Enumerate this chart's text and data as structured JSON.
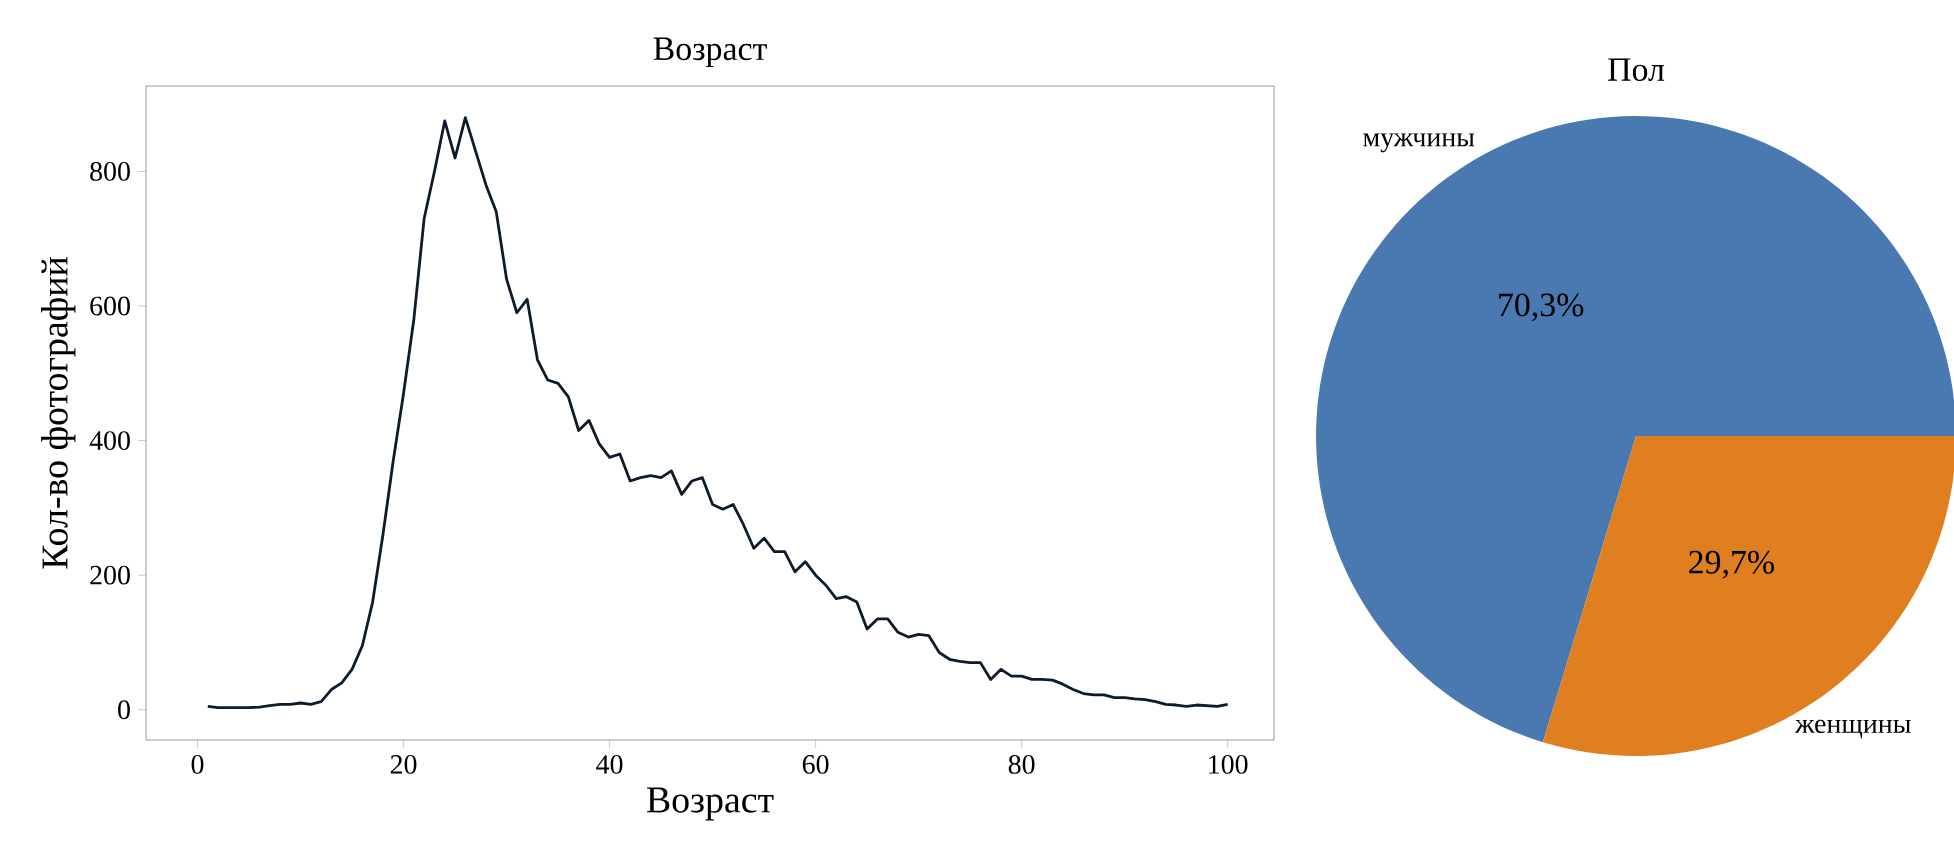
{
  "chart_data": [
    {
      "type": "line",
      "title": "Возраст",
      "xlabel": "Возраст",
      "ylabel": "Кол-во фотографий",
      "x": [
        1,
        2,
        3,
        4,
        5,
        6,
        7,
        8,
        9,
        10,
        11,
        12,
        13,
        14,
        15,
        16,
        17,
        18,
        19,
        20,
        21,
        22,
        23,
        24,
        25,
        26,
        27,
        28,
        29,
        30,
        31,
        32,
        33,
        34,
        35,
        36,
        37,
        38,
        39,
        40,
        41,
        42,
        43,
        44,
        45,
        46,
        47,
        48,
        49,
        50,
        51,
        52,
        53,
        54,
        55,
        56,
        57,
        58,
        59,
        60,
        61,
        62,
        63,
        64,
        65,
        66,
        67,
        68,
        69,
        70,
        71,
        72,
        73,
        74,
        75,
        76,
        77,
        78,
        79,
        80,
        81,
        82,
        83,
        84,
        85,
        86,
        87,
        88,
        89,
        90,
        91,
        92,
        93,
        94,
        95,
        96,
        97,
        98,
        99,
        100
      ],
      "series": [
        {
          "color": "#0d1b2a",
          "values": [
            5,
            3,
            3,
            3,
            3,
            4,
            6,
            8,
            8,
            10,
            8,
            12,
            30,
            40,
            60,
            95,
            160,
            260,
            370,
            470,
            580,
            730,
            800,
            875,
            820,
            880,
            830,
            780,
            740,
            640,
            590,
            610,
            520,
            490,
            485,
            465,
            415,
            430,
            395,
            375,
            380,
            340,
            345,
            348,
            345,
            355,
            320,
            340,
            345,
            305,
            298,
            305,
            275,
            240,
            255,
            235,
            235,
            205,
            220,
            200,
            185,
            165,
            168,
            160,
            120,
            135,
            135,
            115,
            108,
            112,
            110,
            85,
            75,
            72,
            70,
            70,
            45,
            60,
            50,
            50,
            45,
            45,
            44,
            38,
            30,
            24,
            22,
            22,
            18,
            18,
            16,
            15,
            12,
            8,
            7,
            5,
            7,
            6,
            5,
            8
          ]
        }
      ],
      "xlim": [
        -5,
        104.5
      ],
      "ylim": [
        -45,
        927
      ],
      "xticks": [
        0,
        20,
        40,
        60,
        80,
        100
      ],
      "yticks": [
        0,
        200,
        400,
        600,
        800
      ],
      "grid": false,
      "marker": "none",
      "line_style": "solid"
    },
    {
      "type": "pie",
      "title": "Пол",
      "categories": [
        "мужчины",
        "женщины"
      ],
      "values": [
        70.3,
        29.7
      ],
      "colors": [
        "#4a78b0",
        "#e07f1f"
      ],
      "value_labels": [
        "70,3%",
        "29,7%"
      ]
    }
  ]
}
